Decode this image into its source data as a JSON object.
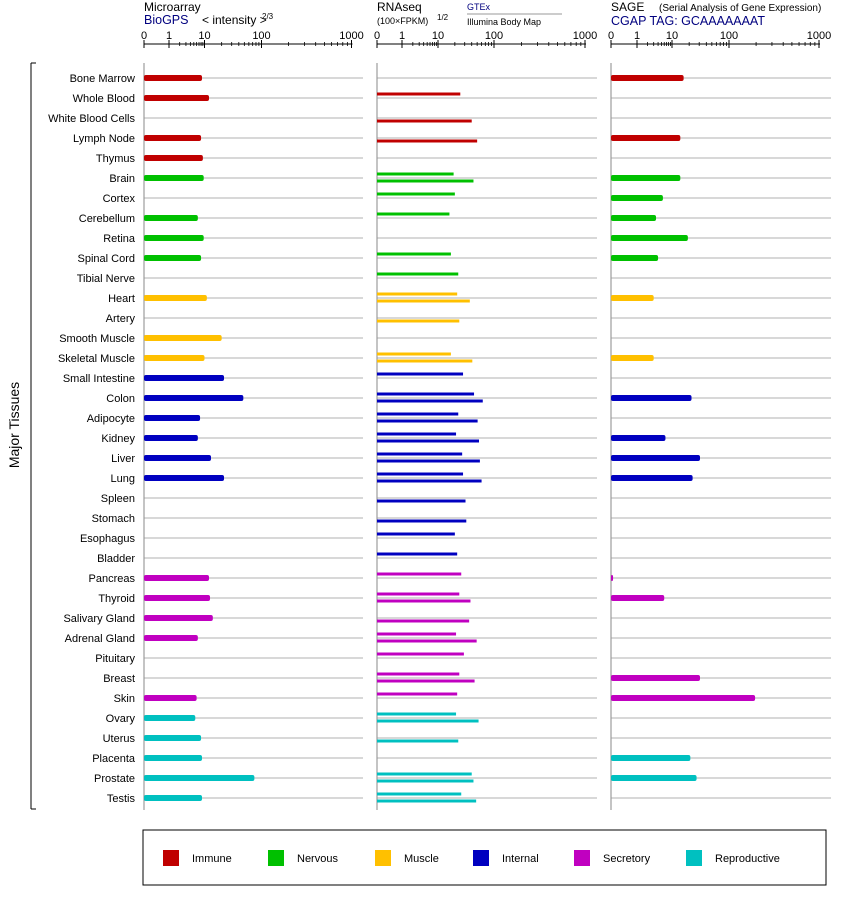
{
  "chart_data": {
    "type": "bar",
    "y_axis_label": "Major Tissues",
    "ticks": [
      "0",
      "1",
      "10",
      "100",
      "1000"
    ],
    "tissues": [
      "Bone Marrow",
      "Whole Blood",
      "White Blood Cells",
      "Lymph Node",
      "Thymus",
      "Brain",
      "Cortex",
      "Cerebellum",
      "Retina",
      "Spinal Cord",
      "Tibial Nerve",
      "Heart",
      "Artery",
      "Smooth Muscle",
      "Skeletal Muscle",
      "Small Intestine",
      "Colon",
      "Adipocyte",
      "Kidney",
      "Liver",
      "Lung",
      "Spleen",
      "Stomach",
      "Esophagus",
      "Bladder",
      "Pancreas",
      "Thyroid",
      "Salivary Gland",
      "Adrenal Gland",
      "Pituitary",
      "Breast",
      "Skin",
      "Ovary",
      "Uterus",
      "Placenta",
      "Prostate",
      "Testis"
    ],
    "groups": [
      0,
      0,
      0,
      0,
      0,
      1,
      1,
      1,
      1,
      1,
      1,
      2,
      2,
      2,
      2,
      3,
      3,
      3,
      3,
      3,
      3,
      3,
      3,
      3,
      3,
      4,
      4,
      4,
      4,
      4,
      4,
      4,
      5,
      5,
      5,
      5,
      5
    ],
    "categories": [
      {
        "name": "Immune",
        "color": "#c00000"
      },
      {
        "name": "Nervous",
        "color": "#00c000"
      },
      {
        "name": "Muscle",
        "color": "#ffc000"
      },
      {
        "name": "Internal",
        "color": "#0000c0"
      },
      {
        "name": "Secretory",
        "color": "#c000c0"
      },
      {
        "name": "Reproductive",
        "color": "#00c0c0"
      }
    ],
    "panels": [
      {
        "title": "Microarray",
        "subtitle": "BioGPS",
        "subtitle2": "< intensity >",
        "subtitle2_sup": "2/3",
        "values": [
          8.5,
          12,
          null,
          8,
          9,
          9.5,
          null,
          6.5,
          9.5,
          8,
          null,
          11,
          null,
          20,
          10,
          22,
          48,
          7.5,
          6.5,
          13,
          22,
          null,
          null,
          null,
          null,
          12,
          12.5,
          14,
          6.5,
          null,
          null,
          6,
          5.5,
          8,
          8.5,
          75,
          8.5
        ]
      },
      {
        "title": "RNAseq",
        "subtitle": "(100×FPKM)",
        "subtitle_sup": "1/2",
        "legend_gtex": "GTEx",
        "legend_ibm": "Illumina Body Map",
        "gtex": [
          null,
          25,
          null,
          null,
          null,
          19,
          20,
          16,
          null,
          17,
          23,
          22,
          null,
          null,
          17,
          28,
          44,
          23,
          21,
          27,
          28,
          null,
          null,
          20,
          22,
          26,
          24,
          null,
          21,
          29,
          24,
          22,
          21,
          null,
          null,
          40,
          26
        ],
        "ibm": [
          null,
          null,
          40,
          50,
          null,
          43,
          null,
          null,
          null,
          null,
          null,
          37,
          24,
          null,
          41,
          null,
          63,
          51,
          54,
          56,
          60,
          31,
          32,
          null,
          null,
          null,
          38,
          36,
          49,
          null,
          45,
          null,
          53,
          23,
          null,
          43,
          48
        ]
      },
      {
        "title": "SAGE",
        "title_note": "(Serial Analysis of Gene Expression)",
        "subtitle": "CGAP TAG: GCAAAAAAAT",
        "values": [
          16,
          null,
          null,
          14,
          null,
          14,
          5.5,
          3.5,
          19,
          4,
          null,
          3,
          null,
          null,
          3,
          null,
          22,
          null,
          6.5,
          31,
          23,
          null,
          null,
          null,
          null,
          0.08,
          6,
          null,
          null,
          null,
          31,
          195,
          null,
          null,
          21,
          27,
          null
        ]
      }
    ]
  }
}
